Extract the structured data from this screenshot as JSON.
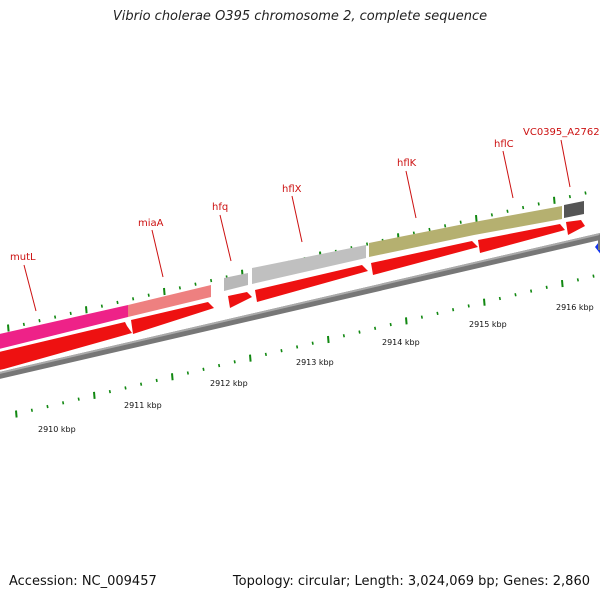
{
  "title": "Vibrio cholerae O395 chromosome 2, complete sequence",
  "footer": {
    "accession": "Accession: NC_009457",
    "summary": "Topology: circular; Length: 3,024,069 bp; Genes: 2,860"
  },
  "colors": {
    "cds_arrow": "#ee1111",
    "backbone": "#777777",
    "tick": "#118811",
    "label": "#cc1111",
    "next_gene": "#1133ee"
  },
  "genes": [
    {
      "name": "mutL",
      "color": "#ee2288"
    },
    {
      "name": "miaA",
      "color": "#ee7f7f"
    },
    {
      "name": "hfq",
      "color": "#b8b8b8"
    },
    {
      "name": "hflX",
      "color": "#bdbdbd"
    },
    {
      "name": "hflK",
      "color": "#b5b070"
    },
    {
      "name": "hflC",
      "color": "#b5b070"
    },
    {
      "name": "VC0395_A2762",
      "color": "#555555"
    }
  ],
  "kbp_labels": [
    "2910 kbp",
    "2911 kbp",
    "2912 kbp",
    "2913 kbp",
    "2914 kbp",
    "2915 kbp",
    "2916 kbp"
  ]
}
